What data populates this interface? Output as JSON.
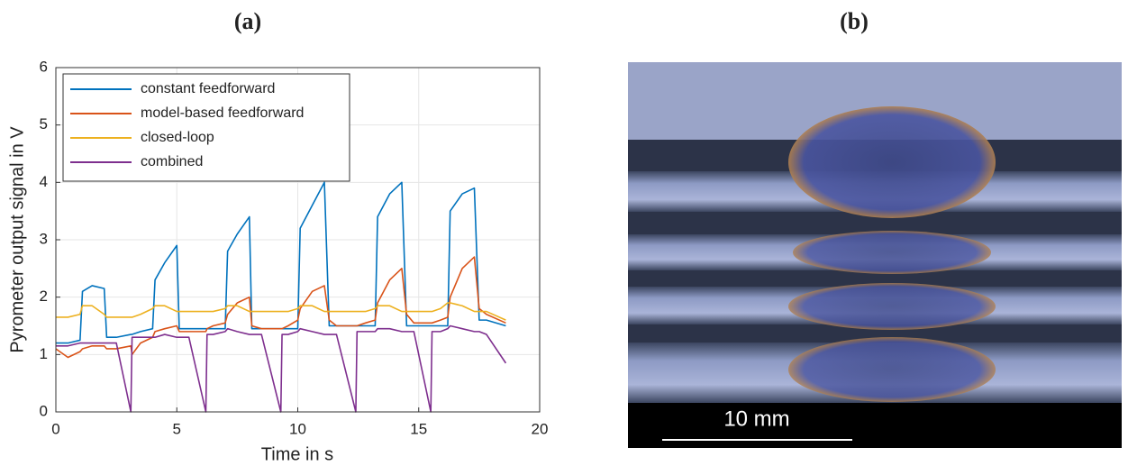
{
  "chart_data": {
    "type": "line",
    "title": "(a)",
    "xlabel": "Time in s",
    "ylabel": "Pyrometer output signal in V",
    "x": [
      0,
      0.5,
      1.0,
      1.1,
      1.5,
      2.0,
      2.1,
      2.5,
      3.1,
      3.15,
      3.5,
      4.0,
      4.1,
      4.5,
      5.0,
      5.1,
      5.5,
      6.2,
      6.25,
      6.5,
      7.0,
      7.1,
      7.5,
      8.0,
      8.1,
      8.5,
      9.3,
      9.35,
      9.6,
      10.0,
      10.1,
      10.6,
      11.1,
      11.3,
      11.6,
      12.4,
      12.45,
      12.8,
      13.2,
      13.3,
      13.8,
      14.3,
      14.5,
      14.8,
      15.5,
      15.55,
      15.9,
      16.2,
      16.3,
      16.8,
      17.3,
      17.5,
      17.8,
      18.6
    ],
    "series": [
      {
        "name": "constant feedforward",
        "color": "#0072BD",
        "values": [
          1.2,
          1.2,
          1.25,
          2.1,
          2.2,
          2.15,
          1.3,
          1.3,
          1.35,
          1.35,
          1.4,
          1.45,
          2.3,
          2.6,
          2.9,
          1.45,
          1.45,
          1.45,
          1.45,
          1.45,
          1.45,
          2.8,
          3.1,
          3.4,
          1.45,
          1.45,
          1.45,
          1.45,
          1.45,
          1.45,
          3.2,
          3.6,
          4.0,
          1.5,
          1.5,
          1.5,
          1.5,
          1.5,
          1.5,
          3.4,
          3.8,
          4.0,
          1.5,
          1.5,
          1.5,
          1.5,
          1.5,
          1.5,
          3.5,
          3.8,
          3.9,
          1.6,
          1.6,
          1.5
        ]
      },
      {
        "name": "model-based feedforward",
        "color": "#D95319",
        "values": [
          1.1,
          0.95,
          1.05,
          1.1,
          1.15,
          1.15,
          1.1,
          1.1,
          1.15,
          1.0,
          1.2,
          1.3,
          1.4,
          1.45,
          1.5,
          1.4,
          1.4,
          1.4,
          1.45,
          1.5,
          1.55,
          1.7,
          1.9,
          2.0,
          1.5,
          1.45,
          1.45,
          1.45,
          1.5,
          1.6,
          1.8,
          2.1,
          2.2,
          1.6,
          1.5,
          1.5,
          1.5,
          1.55,
          1.6,
          1.9,
          2.3,
          2.5,
          1.7,
          1.55,
          1.55,
          1.55,
          1.6,
          1.65,
          2.0,
          2.5,
          2.7,
          1.8,
          1.7,
          1.55
        ]
      },
      {
        "name": "closed-loop",
        "color": "#EDB120",
        "values": [
          1.65,
          1.65,
          1.7,
          1.85,
          1.85,
          1.7,
          1.65,
          1.65,
          1.65,
          1.65,
          1.7,
          1.8,
          1.85,
          1.85,
          1.75,
          1.75,
          1.75,
          1.75,
          1.75,
          1.75,
          1.8,
          1.85,
          1.85,
          1.75,
          1.75,
          1.75,
          1.75,
          1.75,
          1.75,
          1.8,
          1.85,
          1.85,
          1.75,
          1.75,
          1.75,
          1.75,
          1.75,
          1.75,
          1.8,
          1.85,
          1.85,
          1.75,
          1.75,
          1.75,
          1.75,
          1.75,
          1.8,
          1.9,
          1.9,
          1.85,
          1.75,
          1.75,
          1.75,
          1.6
        ]
      },
      {
        "name": "combined",
        "color": "#7E2F8E",
        "values": [
          1.15,
          1.15,
          1.2,
          1.2,
          1.2,
          1.2,
          1.2,
          1.2,
          0,
          1.3,
          1.3,
          1.3,
          1.3,
          1.35,
          1.3,
          1.3,
          1.3,
          0,
          1.35,
          1.35,
          1.4,
          1.45,
          1.4,
          1.35,
          1.35,
          1.35,
          0,
          1.35,
          1.35,
          1.4,
          1.45,
          1.4,
          1.35,
          1.35,
          1.35,
          0,
          1.4,
          1.4,
          1.4,
          1.45,
          1.45,
          1.4,
          1.4,
          1.4,
          0,
          1.4,
          1.4,
          1.45,
          1.5,
          1.45,
          1.4,
          1.4,
          1.35,
          0.85
        ]
      }
    ],
    "xlim": [
      0,
      20
    ],
    "ylim": [
      0,
      6
    ],
    "xticks": [
      0,
      5,
      10,
      15,
      20
    ],
    "yticks": [
      0,
      1,
      2,
      3,
      4,
      5,
      6
    ],
    "grid": true,
    "legend": "upper left"
  },
  "image": {
    "title": "(b)",
    "scale_label": "10 mm"
  }
}
